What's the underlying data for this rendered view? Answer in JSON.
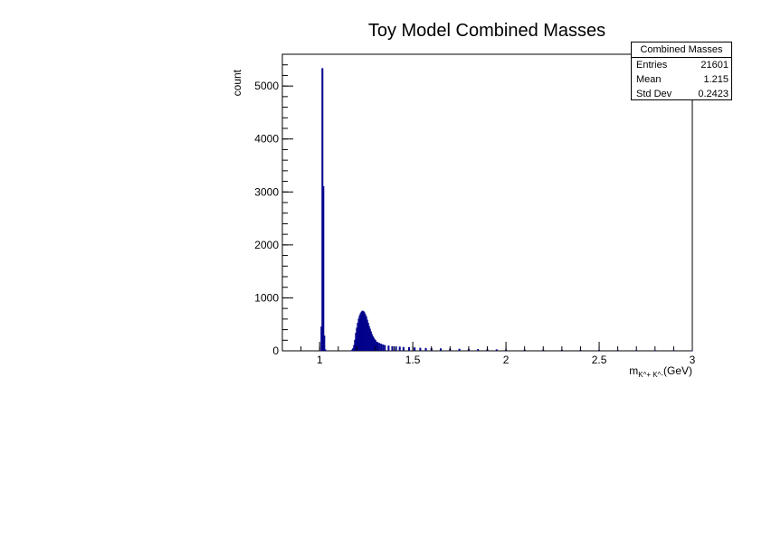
{
  "chart_data": {
    "type": "bar",
    "title": "Toy Model Combined Masses",
    "xlabel": "m",
    "xlabel_sub": "K^+ K^-",
    "xlabel_unit": "(GeV)",
    "ylabel": "count",
    "xlim": [
      0.8,
      3.0
    ],
    "ylim": [
      0,
      5600
    ],
    "x_ticks": [
      "1",
      "1.5",
      "2",
      "2.5",
      "3"
    ],
    "y_ticks": [
      "0",
      "1000",
      "2000",
      "3000",
      "4000",
      "5000"
    ],
    "grid": false,
    "series": [
      {
        "color": "#00008b",
        "bin_width": 0.005,
        "bins": [
          [
            1.005,
            0
          ],
          [
            1.01,
            450
          ],
          [
            1.015,
            5330
          ],
          [
            1.02,
            3100
          ],
          [
            1.025,
            280
          ],
          [
            1.03,
            20
          ],
          [
            1.035,
            0
          ],
          [
            1.17,
            0
          ],
          [
            1.175,
            15
          ],
          [
            1.18,
            40
          ],
          [
            1.185,
            100
          ],
          [
            1.19,
            200
          ],
          [
            1.195,
            330
          ],
          [
            1.2,
            430
          ],
          [
            1.205,
            520
          ],
          [
            1.21,
            600
          ],
          [
            1.215,
            660
          ],
          [
            1.22,
            700
          ],
          [
            1.225,
            730
          ],
          [
            1.23,
            750
          ],
          [
            1.235,
            740
          ],
          [
            1.24,
            720
          ],
          [
            1.245,
            680
          ],
          [
            1.25,
            640
          ],
          [
            1.255,
            580
          ],
          [
            1.26,
            520
          ],
          [
            1.265,
            460
          ],
          [
            1.27,
            410
          ],
          [
            1.275,
            360
          ],
          [
            1.28,
            310
          ],
          [
            1.285,
            270
          ],
          [
            1.29,
            240
          ],
          [
            1.295,
            210
          ],
          [
            1.3,
            190
          ],
          [
            1.31,
            160
          ],
          [
            1.32,
            140
          ],
          [
            1.33,
            125
          ],
          [
            1.34,
            110
          ],
          [
            1.35,
            100
          ],
          [
            1.37,
            90
          ],
          [
            1.39,
            80
          ],
          [
            1.41,
            75
          ],
          [
            1.43,
            70
          ],
          [
            1.45,
            65
          ],
          [
            1.48,
            60
          ],
          [
            1.51,
            55
          ],
          [
            1.54,
            50
          ],
          [
            1.57,
            45
          ],
          [
            1.6,
            42
          ],
          [
            1.65,
            38
          ],
          [
            1.7,
            34
          ],
          [
            1.75,
            30
          ],
          [
            1.8,
            27
          ],
          [
            1.85,
            24
          ],
          [
            1.9,
            21
          ],
          [
            1.95,
            19
          ],
          [
            2.0,
            17
          ],
          [
            2.1,
            14
          ],
          [
            2.2,
            12
          ],
          [
            2.3,
            10
          ],
          [
            2.4,
            8
          ],
          [
            2.5,
            7
          ],
          [
            2.6,
            5
          ],
          [
            2.7,
            4
          ],
          [
            2.8,
            3
          ],
          [
            2.9,
            2
          ],
          [
            2.995,
            1
          ]
        ]
      }
    ]
  },
  "stats": {
    "title": "Combined Masses",
    "rows": [
      {
        "label": "Entries",
        "value": "21601"
      },
      {
        "label": "Mean",
        "value": "1.215"
      },
      {
        "label": "Std Dev",
        "value": "0.2423"
      }
    ]
  }
}
